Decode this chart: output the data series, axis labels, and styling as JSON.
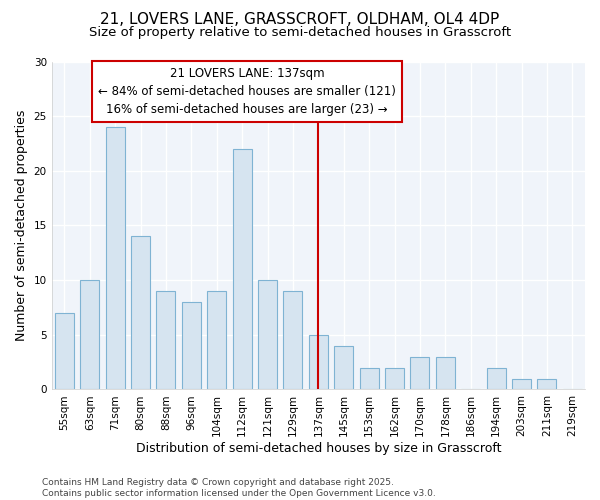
{
  "title_line1": "21, LOVERS LANE, GRASSCROFT, OLDHAM, OL4 4DP",
  "title_line2": "Size of property relative to semi-detached houses in Grasscroft",
  "xlabel": "Distribution of semi-detached houses by size in Grasscroft",
  "ylabel": "Number of semi-detached properties",
  "categories": [
    "55sqm",
    "63sqm",
    "71sqm",
    "80sqm",
    "88sqm",
    "96sqm",
    "104sqm",
    "112sqm",
    "121sqm",
    "129sqm",
    "137sqm",
    "145sqm",
    "153sqm",
    "162sqm",
    "170sqm",
    "178sqm",
    "186sqm",
    "194sqm",
    "203sqm",
    "211sqm",
    "219sqm"
  ],
  "values": [
    7,
    10,
    24,
    14,
    9,
    8,
    9,
    22,
    10,
    9,
    5,
    4,
    2,
    2,
    3,
    3,
    0,
    2,
    1,
    1,
    0
  ],
  "bar_color": "#d6e4f0",
  "bar_edge_color": "#7fb3d3",
  "vline_x_index": 10,
  "vline_color": "#cc0000",
  "annotation_text": "21 LOVERS LANE: 137sqm\n← 84% of semi-detached houses are smaller (121)\n16% of semi-detached houses are larger (23) →",
  "annotation_box_color": "#ffffff",
  "annotation_box_edge_color": "#cc0000",
  "ylim": [
    0,
    30
  ],
  "yticks": [
    0,
    5,
    10,
    15,
    20,
    25,
    30
  ],
  "bg_color": "#ffffff",
  "plot_bg_color": "#f0f4fa",
  "grid_color": "#ffffff",
  "footer_text": "Contains HM Land Registry data © Crown copyright and database right 2025.\nContains public sector information licensed under the Open Government Licence v3.0.",
  "title_fontsize": 11,
  "subtitle_fontsize": 9.5,
  "axis_label_fontsize": 9,
  "tick_fontsize": 7.5,
  "annotation_fontsize": 8.5,
  "footer_fontsize": 6.5,
  "bar_width": 0.75
}
